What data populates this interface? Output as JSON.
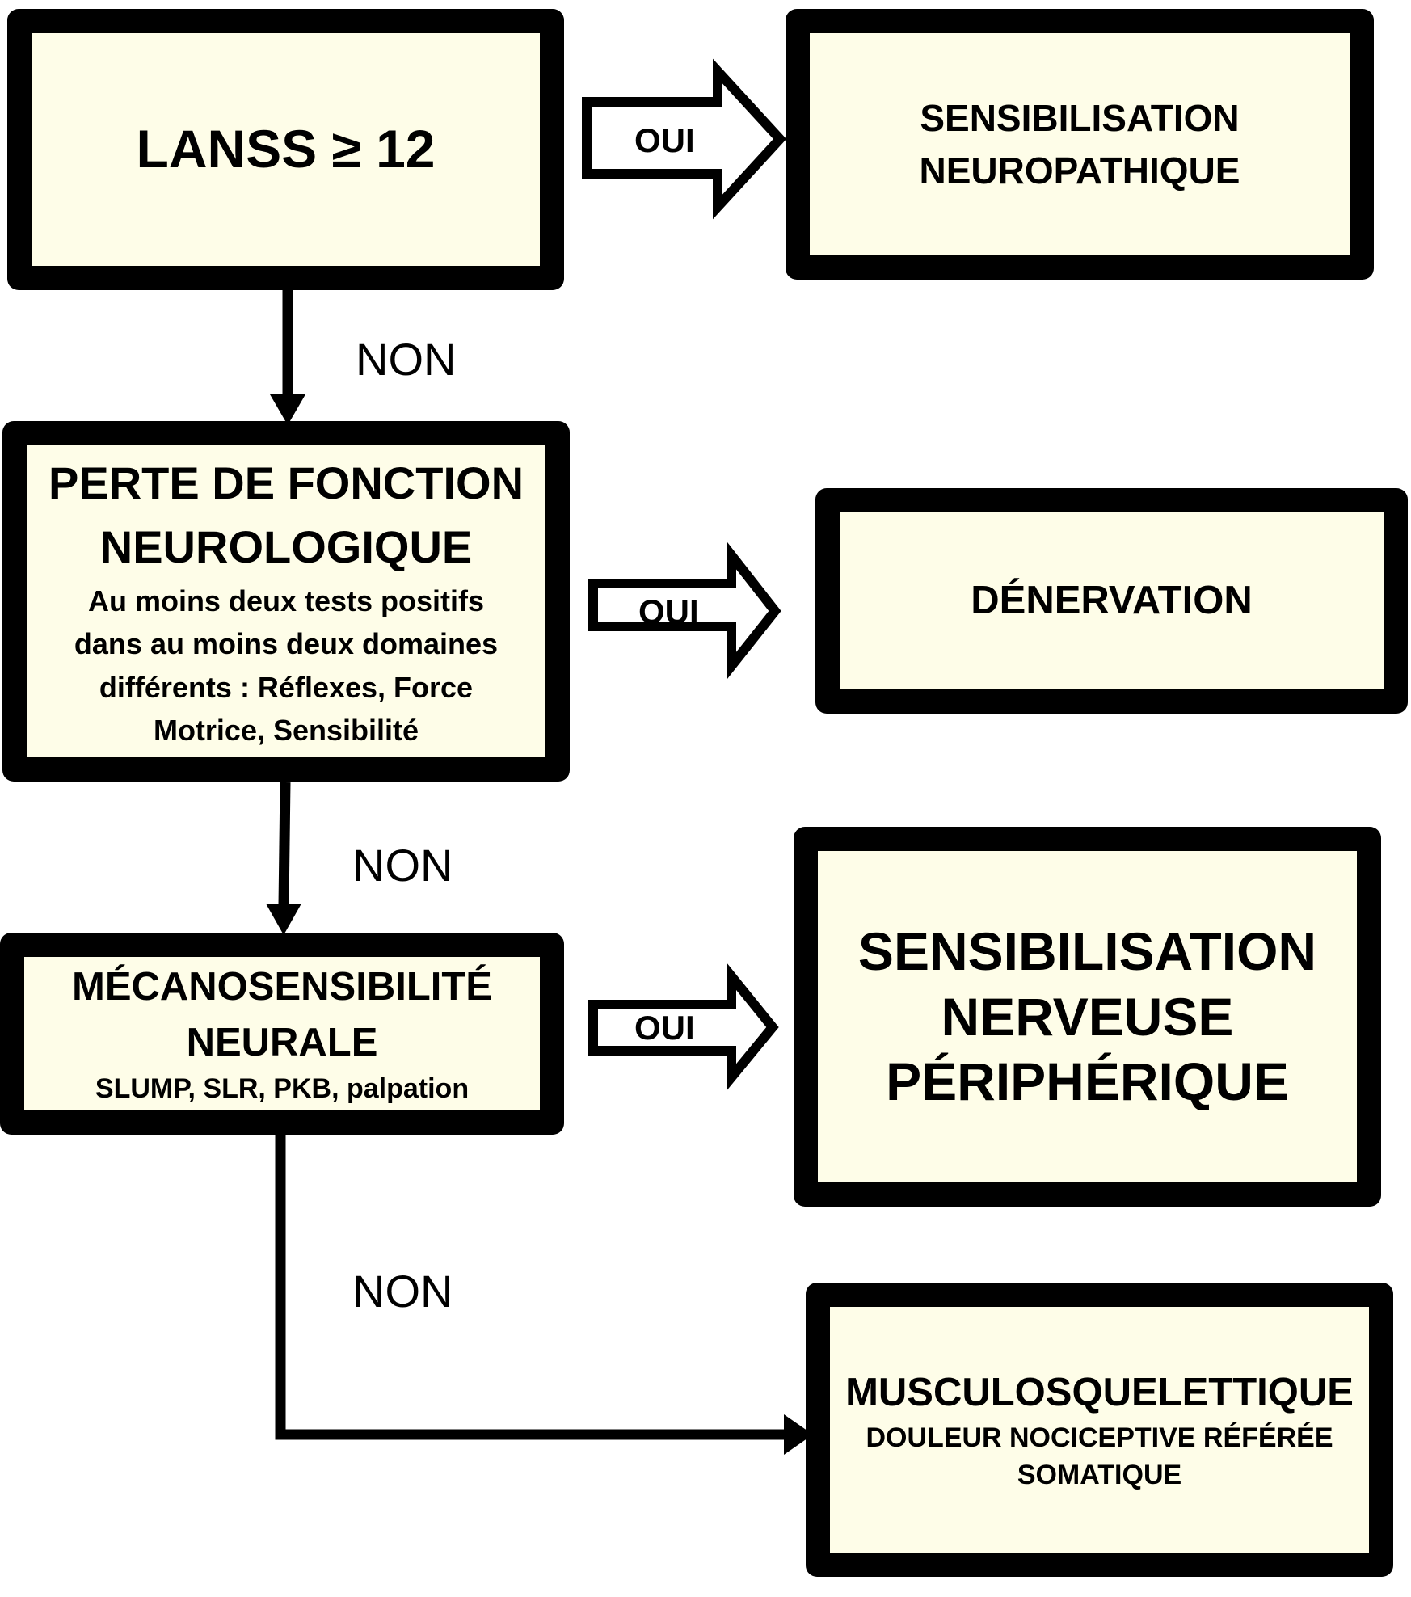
{
  "colors": {
    "box_fill": "#fefde8",
    "stroke": "#000000",
    "background": "#ffffff"
  },
  "nodes": {
    "lanss": {
      "title": "LANSS ≥ 12"
    },
    "perte": {
      "title_line1": "PERTE DE FONCTION",
      "title_line2": "NEUROLOGIQUE",
      "detail": [
        "Au moins deux tests positifs",
        "dans au moins deux domaines",
        "différents : Réflexes, Force",
        "Motrice, Sensibilité"
      ]
    },
    "meca": {
      "title_line1": "MÉCANOSENSIBILITÉ",
      "title_line2": "NEURALE",
      "detail": "SLUMP, SLR, PKB, palpation"
    },
    "sens_neuro": {
      "line1": "SENSIBILISATION",
      "line2": "NEUROPATHIQUE"
    },
    "denervation": {
      "title": "DÉNERVATION"
    },
    "sens_nerv": {
      "line1": "SENSIBILISATION",
      "line2": "NERVEUSE",
      "line3": "PÉRIPHÉRIQUE"
    },
    "musculo": {
      "title": "MUSCULOSQUELETTIQUE",
      "sub1": "DOULEUR NOCICEPTIVE RÉFÉRÉE",
      "sub2": "SOMATIQUE"
    }
  },
  "edges": {
    "yes_label": "OUI",
    "no_label": "NON"
  }
}
